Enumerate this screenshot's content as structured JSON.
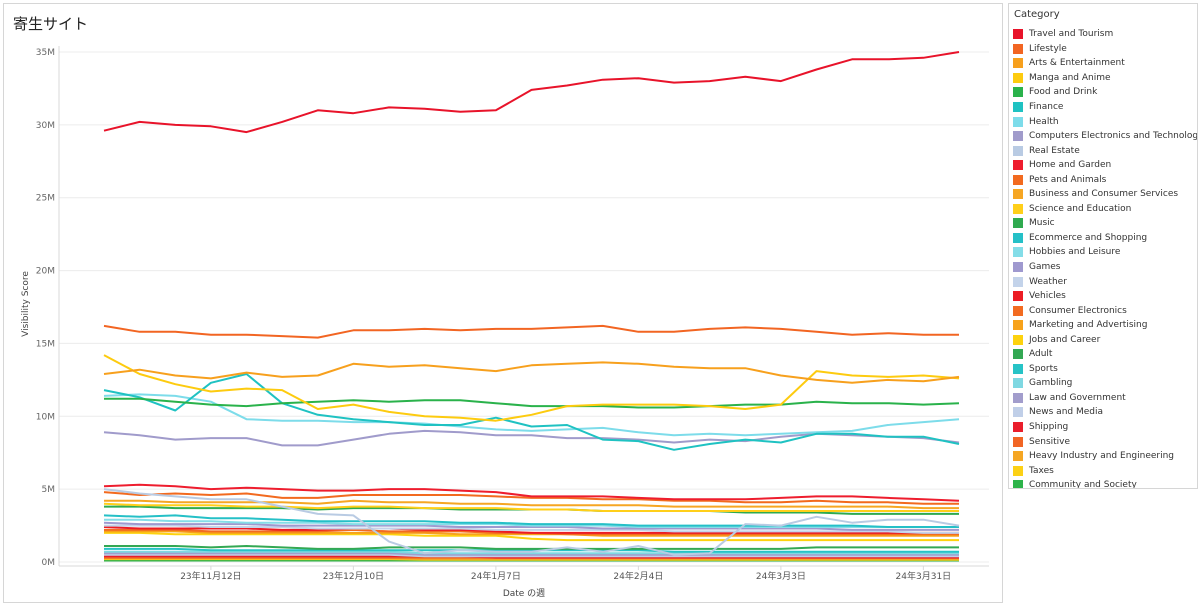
{
  "page": {
    "title": "寄生サイト"
  },
  "legend": {
    "title": "Category"
  },
  "chart_data": {
    "type": "line",
    "title": "寄生サイト",
    "xlabel": "Date の週",
    "ylabel": "Visibility Score",
    "ylim": [
      0,
      35000000
    ],
    "yticks": [
      {
        "value": 0,
        "label": "0M"
      },
      {
        "value": 5000000,
        "label": "5M"
      },
      {
        "value": 10000000,
        "label": "10M"
      },
      {
        "value": 15000000,
        "label": "15M"
      },
      {
        "value": 20000000,
        "label": "20M"
      },
      {
        "value": 25000000,
        "label": "25M"
      },
      {
        "value": 30000000,
        "label": "30M"
      },
      {
        "value": 35000000,
        "label": "35M"
      }
    ],
    "x": [
      "2023-10-22",
      "2023-10-29",
      "2023-11-05",
      "2023-11-12",
      "2023-11-19",
      "2023-11-26",
      "2023-12-03",
      "2023-12-10",
      "2023-12-17",
      "2023-12-24",
      "2023-12-31",
      "2024-01-07",
      "2024-01-14",
      "2024-01-21",
      "2024-01-28",
      "2024-02-04",
      "2024-02-11",
      "2024-02-18",
      "2024-02-25",
      "2024-03-03",
      "2024-03-10",
      "2024-03-17",
      "2024-03-24",
      "2024-03-31",
      "2024-04-07",
      "2024-04-14",
      "2024-04-21"
    ],
    "xticks": [
      {
        "value": "2023-11-12",
        "label": "23年11月12日"
      },
      {
        "value": "2023-12-10",
        "label": "23年12月10日"
      },
      {
        "value": "2024-01-07",
        "label": "24年1月7日"
      },
      {
        "value": "2024-02-04",
        "label": "24年2月4日"
      },
      {
        "value": "2024-03-03",
        "label": "24年3月3日"
      },
      {
        "value": "2024-03-31",
        "label": "24年3月31日"
      }
    ],
    "grid": true,
    "legend_position": "right",
    "series": [
      {
        "name": "Travel and Tourism",
        "color": "#e8132a",
        "values": [
          29.6,
          30.2,
          30.0,
          29.9,
          29.5,
          30.2,
          31.0,
          30.8,
          31.2,
          31.1,
          30.9,
          31.0,
          32.4,
          32.7,
          33.1,
          33.2,
          32.9,
          33.0,
          33.3,
          33.0,
          33.8,
          34.5,
          34.5,
          34.6,
          35.0,
          null,
          null
        ]
      },
      {
        "name": "Lifestyle",
        "color": "#f26522",
        "values": [
          16.2,
          15.8,
          15.8,
          15.6,
          15.6,
          15.5,
          15.4,
          15.9,
          15.9,
          16.0,
          15.9,
          16.0,
          16.0,
          16.1,
          16.2,
          15.8,
          15.8,
          16.0,
          16.1,
          16.0,
          15.8,
          15.6,
          15.7,
          15.6,
          15.6,
          null,
          null
        ]
      },
      {
        "name": "Arts & Entertainment",
        "color": "#f7a01d",
        "values": [
          12.9,
          13.2,
          12.8,
          12.6,
          13.0,
          12.7,
          12.8,
          13.6,
          13.4,
          13.5,
          13.3,
          13.1,
          13.5,
          13.6,
          13.7,
          13.6,
          13.4,
          13.3,
          13.3,
          12.8,
          12.5,
          12.3,
          12.5,
          12.4,
          12.7,
          null,
          null
        ]
      },
      {
        "name": "Manga and Anime",
        "color": "#fdcb0f",
        "values": [
          14.2,
          12.9,
          12.2,
          11.7,
          11.9,
          11.8,
          10.5,
          10.8,
          10.3,
          10.0,
          9.9,
          9.7,
          10.1,
          10.7,
          10.8,
          10.8,
          10.8,
          10.7,
          10.5,
          10.8,
          13.1,
          12.8,
          12.7,
          12.8,
          12.6,
          null,
          null
        ]
      },
      {
        "name": "Food and Drink",
        "color": "#2ab24b",
        "values": [
          11.2,
          11.2,
          11.0,
          10.8,
          10.7,
          10.9,
          11.0,
          11.1,
          11.0,
          11.1,
          11.1,
          10.9,
          10.7,
          10.7,
          10.7,
          10.6,
          10.6,
          10.7,
          10.8,
          10.8,
          11.0,
          10.9,
          10.9,
          10.8,
          10.9,
          null,
          null
        ]
      },
      {
        "name": "Finance",
        "color": "#1fc2c2",
        "values": [
          11.8,
          11.3,
          10.4,
          12.3,
          12.9,
          10.9,
          10.1,
          9.8,
          9.6,
          9.4,
          9.4,
          9.9,
          9.3,
          9.4,
          8.4,
          8.3,
          7.7,
          8.1,
          8.4,
          8.2,
          8.8,
          8.8,
          8.6,
          8.6,
          8.1,
          null,
          null
        ]
      },
      {
        "name": "Health",
        "color": "#7ddcea",
        "values": [
          11.4,
          11.5,
          11.4,
          11.0,
          9.8,
          9.7,
          9.7,
          9.6,
          9.6,
          9.5,
          9.3,
          9.1,
          9.0,
          9.1,
          9.2,
          8.9,
          8.7,
          8.8,
          8.7,
          8.8,
          8.9,
          9.0,
          9.4,
          9.6,
          9.8,
          null,
          null
        ]
      },
      {
        "name": "Computers Electronics and Technology",
        "color": "#a09bcb",
        "values": [
          8.9,
          8.7,
          8.4,
          8.5,
          8.5,
          8.0,
          8.0,
          8.4,
          8.8,
          9.0,
          8.9,
          8.7,
          8.7,
          8.5,
          8.5,
          8.4,
          8.2,
          8.4,
          8.3,
          8.6,
          8.8,
          8.7,
          8.6,
          8.5,
          8.2,
          null,
          null
        ]
      },
      {
        "name": "Real Estate",
        "color": "#b9cbe3",
        "values": [
          5.0,
          4.7,
          4.5,
          4.3,
          4.3,
          3.8,
          3.3,
          3.2,
          1.4,
          0.6,
          0.8,
          0.7,
          0.7,
          1.0,
          0.7,
          1.1,
          0.5,
          0.6,
          2.6,
          2.5,
          3.1,
          2.7,
          2.9,
          2.9,
          2.5,
          null,
          null
        ]
      },
      {
        "name": "Home and Garden",
        "color": "#ee1d2e",
        "values": [
          5.2,
          5.3,
          5.2,
          5.0,
          5.1,
          5.0,
          4.9,
          4.9,
          5.0,
          5.0,
          4.9,
          4.8,
          4.5,
          4.5,
          4.5,
          4.4,
          4.3,
          4.3,
          4.3,
          4.4,
          4.5,
          4.5,
          4.4,
          4.3,
          4.2,
          null,
          null
        ]
      },
      {
        "name": "Pets and Animals",
        "color": "#f26a1f",
        "values": [
          4.8,
          4.6,
          4.7,
          4.6,
          4.7,
          4.4,
          4.4,
          4.6,
          4.6,
          4.6,
          4.6,
          4.5,
          4.4,
          4.4,
          4.3,
          4.3,
          4.2,
          4.2,
          4.1,
          4.1,
          4.2,
          4.1,
          4.1,
          4.0,
          4.0,
          null,
          null
        ]
      },
      {
        "name": "Business and Consumer Services",
        "color": "#f6a623",
        "values": [
          4.2,
          4.2,
          4.1,
          4.1,
          4.1,
          4.1,
          4.0,
          4.2,
          4.1,
          4.1,
          4.0,
          4.0,
          3.9,
          3.9,
          3.9,
          3.9,
          3.8,
          3.8,
          3.8,
          3.8,
          3.8,
          3.8,
          3.8,
          3.7,
          3.7,
          null,
          null
        ]
      },
      {
        "name": "Science and Education",
        "color": "#ffcf1a",
        "values": [
          4.0,
          3.9,
          3.9,
          3.9,
          3.8,
          3.8,
          3.7,
          3.8,
          3.8,
          3.7,
          3.7,
          3.7,
          3.6,
          3.6,
          3.5,
          3.5,
          3.5,
          3.5,
          3.5,
          3.5,
          3.5,
          3.5,
          3.5,
          3.5,
          3.5,
          null,
          null
        ]
      },
      {
        "name": "Music",
        "color": "#2faa4f",
        "values": [
          3.8,
          3.8,
          3.7,
          3.7,
          3.7,
          3.7,
          3.6,
          3.7,
          3.7,
          3.7,
          3.6,
          3.6,
          3.6,
          3.6,
          3.5,
          3.5,
          3.5,
          3.5,
          3.4,
          3.4,
          3.4,
          3.3,
          3.3,
          3.3,
          3.3,
          null,
          null
        ]
      },
      {
        "name": "Ecommerce and Shopping",
        "color": "#25c0c7",
        "values": [
          3.2,
          3.1,
          3.2,
          3.0,
          3.0,
          2.9,
          2.8,
          2.8,
          2.8,
          2.8,
          2.7,
          2.7,
          2.6,
          2.6,
          2.6,
          2.5,
          2.5,
          2.5,
          2.5,
          2.5,
          2.5,
          2.5,
          2.4,
          2.4,
          2.4,
          null,
          null
        ]
      },
      {
        "name": "Hobbies and Leisure",
        "color": "#84dde8",
        "values": [
          2.9,
          2.9,
          2.8,
          2.8,
          2.7,
          2.7,
          2.7,
          2.6,
          2.6,
          2.6,
          2.6,
          2.6,
          2.5,
          2.5,
          2.5,
          2.4,
          2.4,
          2.4,
          2.4,
          2.4,
          2.4,
          2.4,
          2.4,
          2.4,
          2.4,
          null,
          null
        ]
      },
      {
        "name": "Games",
        "color": "#9f99cf",
        "values": [
          2.7,
          2.6,
          2.6,
          2.6,
          2.6,
          2.5,
          2.5,
          2.5,
          2.5,
          2.5,
          2.4,
          2.4,
          2.4,
          2.4,
          2.3,
          2.3,
          2.3,
          2.3,
          2.3,
          2.3,
          2.3,
          2.2,
          2.2,
          2.2,
          2.2,
          null,
          null
        ]
      },
      {
        "name": "Weather",
        "color": "#c3d3ea",
        "values": [
          2.5,
          2.5,
          2.5,
          2.4,
          2.4,
          2.4,
          2.3,
          2.3,
          2.3,
          2.3,
          2.3,
          2.2,
          2.2,
          2.2,
          2.2,
          2.2,
          2.1,
          2.1,
          2.1,
          2.1,
          2.1,
          2.1,
          2.1,
          2.0,
          2.0,
          null,
          null
        ]
      },
      {
        "name": "Vehicles",
        "color": "#ec1c24",
        "values": [
          2.4,
          2.3,
          2.3,
          2.3,
          2.3,
          2.2,
          2.2,
          2.3,
          2.3,
          2.2,
          2.2,
          2.1,
          2.0,
          2.0,
          2.0,
          2.0,
          2.0,
          2.0,
          2.0,
          2.0,
          2.0,
          2.0,
          2.0,
          2.0,
          2.0,
          null,
          null
        ]
      },
      {
        "name": "Consumer Electronics",
        "color": "#f26b21",
        "values": [
          2.2,
          2.2,
          2.2,
          2.1,
          2.1,
          2.1,
          2.1,
          2.2,
          2.1,
          2.1,
          2.1,
          2.0,
          2.0,
          1.9,
          1.9,
          1.9,
          1.9,
          1.9,
          1.9,
          1.9,
          1.9,
          1.9,
          1.9,
          1.9,
          1.9,
          null,
          null
        ]
      },
      {
        "name": "Marketing and Advertising",
        "color": "#f7a21b",
        "values": [
          2.1,
          2.1,
          2.1,
          2.0,
          2.0,
          2.0,
          2.0,
          2.0,
          2.0,
          2.0,
          1.9,
          1.9,
          1.9,
          1.9,
          1.8,
          1.8,
          1.8,
          1.8,
          1.8,
          1.8,
          1.8,
          1.8,
          1.8,
          1.8,
          1.8,
          null,
          null
        ]
      },
      {
        "name": "Jobs and Career",
        "color": "#fdd20e",
        "values": [
          2.0,
          2.0,
          1.9,
          1.9,
          1.9,
          1.9,
          1.9,
          1.9,
          1.9,
          1.8,
          1.8,
          1.8,
          1.6,
          1.5,
          1.5,
          1.5,
          1.5,
          1.5,
          1.5,
          1.5,
          1.5,
          1.5,
          1.5,
          1.5,
          1.5,
          null,
          null
        ]
      },
      {
        "name": "Adult",
        "color": "#33a853",
        "values": [
          1.1,
          1.1,
          1.1,
          1.0,
          1.1,
          1.0,
          0.9,
          0.9,
          1.0,
          1.0,
          1.0,
          0.9,
          0.9,
          0.9,
          0.9,
          0.9,
          0.9,
          0.9,
          0.9,
          0.9,
          1.0,
          1.0,
          1.0,
          1.0,
          1.0,
          null,
          null
        ]
      },
      {
        "name": "Sports",
        "color": "#26c3c6",
        "values": [
          0.9,
          0.9,
          0.9,
          0.8,
          0.8,
          0.8,
          0.8,
          0.8,
          0.8,
          0.8,
          0.8,
          0.8,
          0.8,
          0.8,
          0.8,
          0.8,
          0.7,
          0.7,
          0.7,
          0.7,
          0.7,
          0.7,
          0.7,
          0.7,
          0.7,
          null,
          null
        ]
      },
      {
        "name": "Gambling",
        "color": "#7fd8e2",
        "values": [
          0.7,
          0.7,
          0.7,
          0.7,
          0.7,
          0.7,
          0.7,
          0.7,
          0.7,
          0.6,
          0.6,
          0.6,
          0.6,
          0.6,
          0.6,
          0.6,
          0.6,
          0.6,
          0.6,
          0.6,
          0.6,
          0.6,
          0.6,
          0.6,
          0.6,
          null,
          null
        ]
      },
      {
        "name": "Law and Government",
        "color": "#a29dcc",
        "values": [
          0.6,
          0.6,
          0.6,
          0.6,
          0.6,
          0.6,
          0.6,
          0.6,
          0.6,
          0.5,
          0.5,
          0.5,
          0.5,
          0.5,
          0.5,
          0.5,
          0.5,
          0.5,
          0.5,
          0.5,
          0.5,
          0.5,
          0.5,
          0.5,
          0.5,
          null,
          null
        ]
      },
      {
        "name": "News and Media",
        "color": "#c0cfe8",
        "values": [
          0.5,
          0.5,
          0.5,
          0.5,
          0.5,
          0.5,
          0.5,
          0.5,
          0.5,
          0.4,
          0.4,
          0.4,
          0.4,
          0.4,
          0.4,
          0.4,
          0.4,
          0.4,
          0.4,
          0.4,
          0.4,
          0.4,
          0.4,
          0.4,
          0.4,
          null,
          null
        ]
      },
      {
        "name": "Shipping",
        "color": "#ea1e2c",
        "values": [
          0.4,
          0.4,
          0.4,
          0.4,
          0.4,
          0.4,
          0.4,
          0.4,
          0.4,
          0.4,
          0.4,
          0.3,
          0.3,
          0.3,
          0.3,
          0.3,
          0.3,
          0.3,
          0.3,
          0.3,
          0.3,
          0.3,
          0.3,
          0.3,
          0.3,
          null,
          null
        ]
      },
      {
        "name": "Sensitive",
        "color": "#f16524",
        "values": [
          0.3,
          0.3,
          0.3,
          0.3,
          0.3,
          0.3,
          0.3,
          0.3,
          0.3,
          0.3,
          0.3,
          0.3,
          0.3,
          0.3,
          0.3,
          0.3,
          0.3,
          0.3,
          0.3,
          0.3,
          0.3,
          0.3,
          0.3,
          0.3,
          0.3,
          null,
          null
        ]
      },
      {
        "name": "Heavy Industry and Engineering",
        "color": "#f5a623",
        "values": [
          0.25,
          0.25,
          0.25,
          0.25,
          0.25,
          0.25,
          0.25,
          0.25,
          0.25,
          0.2,
          0.2,
          0.2,
          0.2,
          0.2,
          0.2,
          0.2,
          0.2,
          0.2,
          0.2,
          0.2,
          0.2,
          0.2,
          0.2,
          0.2,
          0.2,
          null,
          null
        ]
      },
      {
        "name": "Taxes",
        "color": "#fcd116",
        "values": [
          0.2,
          0.2,
          0.2,
          0.2,
          0.2,
          0.2,
          0.2,
          0.2,
          0.2,
          0.15,
          0.15,
          0.15,
          0.15,
          0.15,
          0.15,
          0.15,
          0.15,
          0.15,
          0.15,
          0.15,
          0.15,
          0.15,
          0.15,
          0.15,
          0.15,
          null,
          null
        ]
      },
      {
        "name": "Community and Society",
        "color": "#2db34a",
        "values": [
          0.1,
          0.1,
          0.1,
          0.1,
          0.1,
          0.1,
          0.1,
          0.1,
          0.1,
          0.1,
          0.1,
          0.1,
          0.1,
          0.1,
          0.1,
          0.1,
          0.1,
          0.1,
          0.1,
          0.1,
          0.1,
          0.1,
          0.1,
          0.1,
          0.1,
          null,
          null
        ]
      }
    ],
    "value_unit_note": "values in millions"
  }
}
